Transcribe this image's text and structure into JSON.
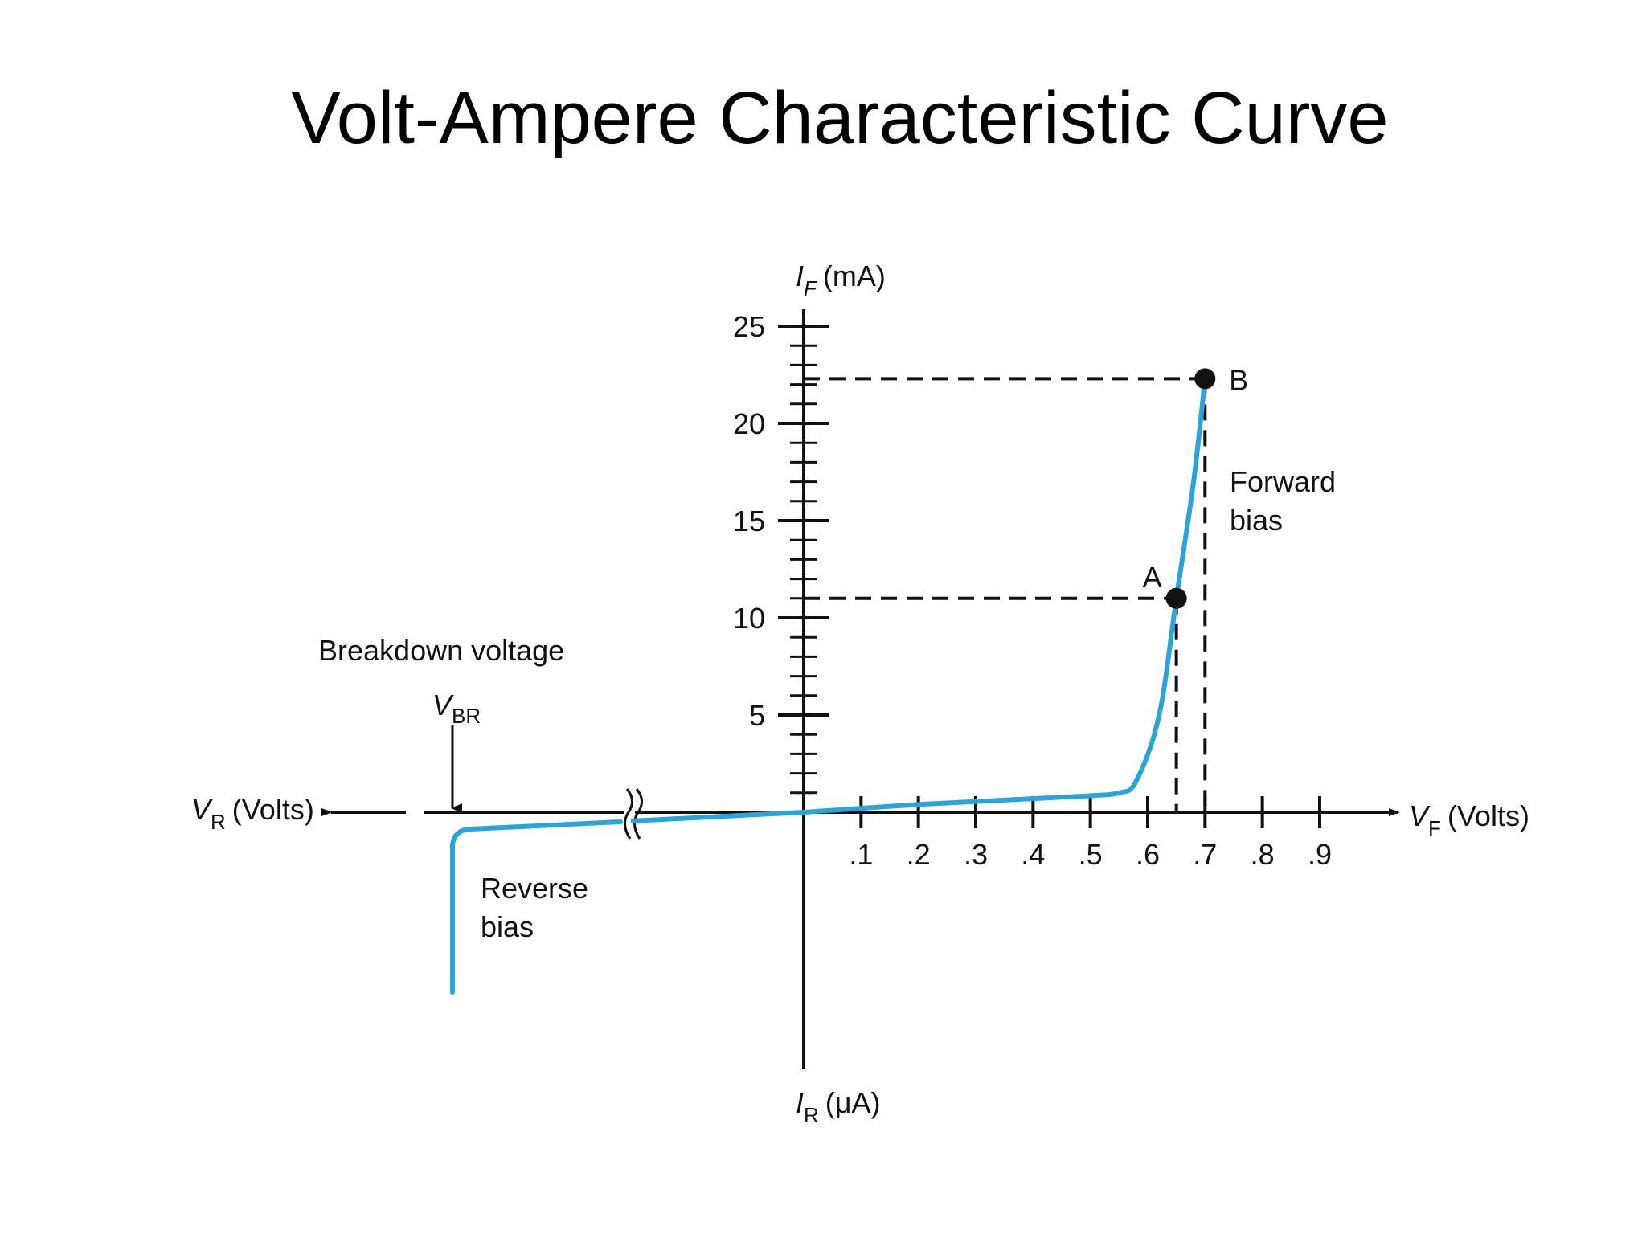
{
  "title": "Volt-Ampere Characteristic Curve",
  "chart_data": {
    "type": "line",
    "title": "Volt-Ampere Characteristic Curve",
    "x_axis": {
      "forward_label": {
        "symbol": "V",
        "subscript": "F",
        "unit": "(Volts)"
      },
      "reverse_label": {
        "symbol": "V",
        "subscript": "R",
        "unit": "(Volts)"
      },
      "ticks": [
        0.1,
        0.2,
        0.3,
        0.4,
        0.5,
        0.6,
        0.7,
        0.8,
        0.9
      ],
      "tick_labels": [
        ".1",
        ".2",
        ".3",
        ".4",
        ".5",
        ".6",
        ".7",
        ".8",
        ".9"
      ],
      "xlim": [
        0,
        0.95
      ]
    },
    "y_axis": {
      "forward_label": {
        "symbol": "I",
        "subscript": "F",
        "unit": "(mA)"
      },
      "reverse_label": {
        "symbol": "I",
        "subscript": "R",
        "unit": "(μA)"
      },
      "ticks": [
        5,
        10,
        15,
        20,
        25
      ],
      "tick_labels": [
        "5",
        "10",
        "15",
        "20",
        "25"
      ],
      "minor_tick_step": 1,
      "ylim": [
        0,
        25
      ]
    },
    "series": [
      {
        "color": "#2aa5dc",
        "forward_points": [
          [
            0,
            0
          ],
          [
            0.1,
            0.2
          ],
          [
            0.2,
            0.4
          ],
          [
            0.3,
            0.55
          ],
          [
            0.4,
            0.7
          ],
          [
            0.5,
            0.85
          ],
          [
            0.55,
            1
          ],
          [
            0.58,
            1.6
          ],
          [
            0.62,
            5
          ],
          [
            0.65,
            11
          ],
          [
            0.68,
            17
          ],
          [
            0.7,
            22.3
          ]
        ]
      }
    ],
    "points": [
      {
        "label": "A",
        "x": 0.65,
        "y": 11
      },
      {
        "label": "B",
        "x": 0.7,
        "y": 22.3
      }
    ],
    "annotations": {
      "forward": [
        "Forward",
        "bias"
      ],
      "reverse": [
        "Reverse",
        "bias"
      ],
      "breakdown": "Breakdown voltage",
      "vbr": {
        "symbol": "V",
        "subscript": "BR"
      }
    }
  }
}
